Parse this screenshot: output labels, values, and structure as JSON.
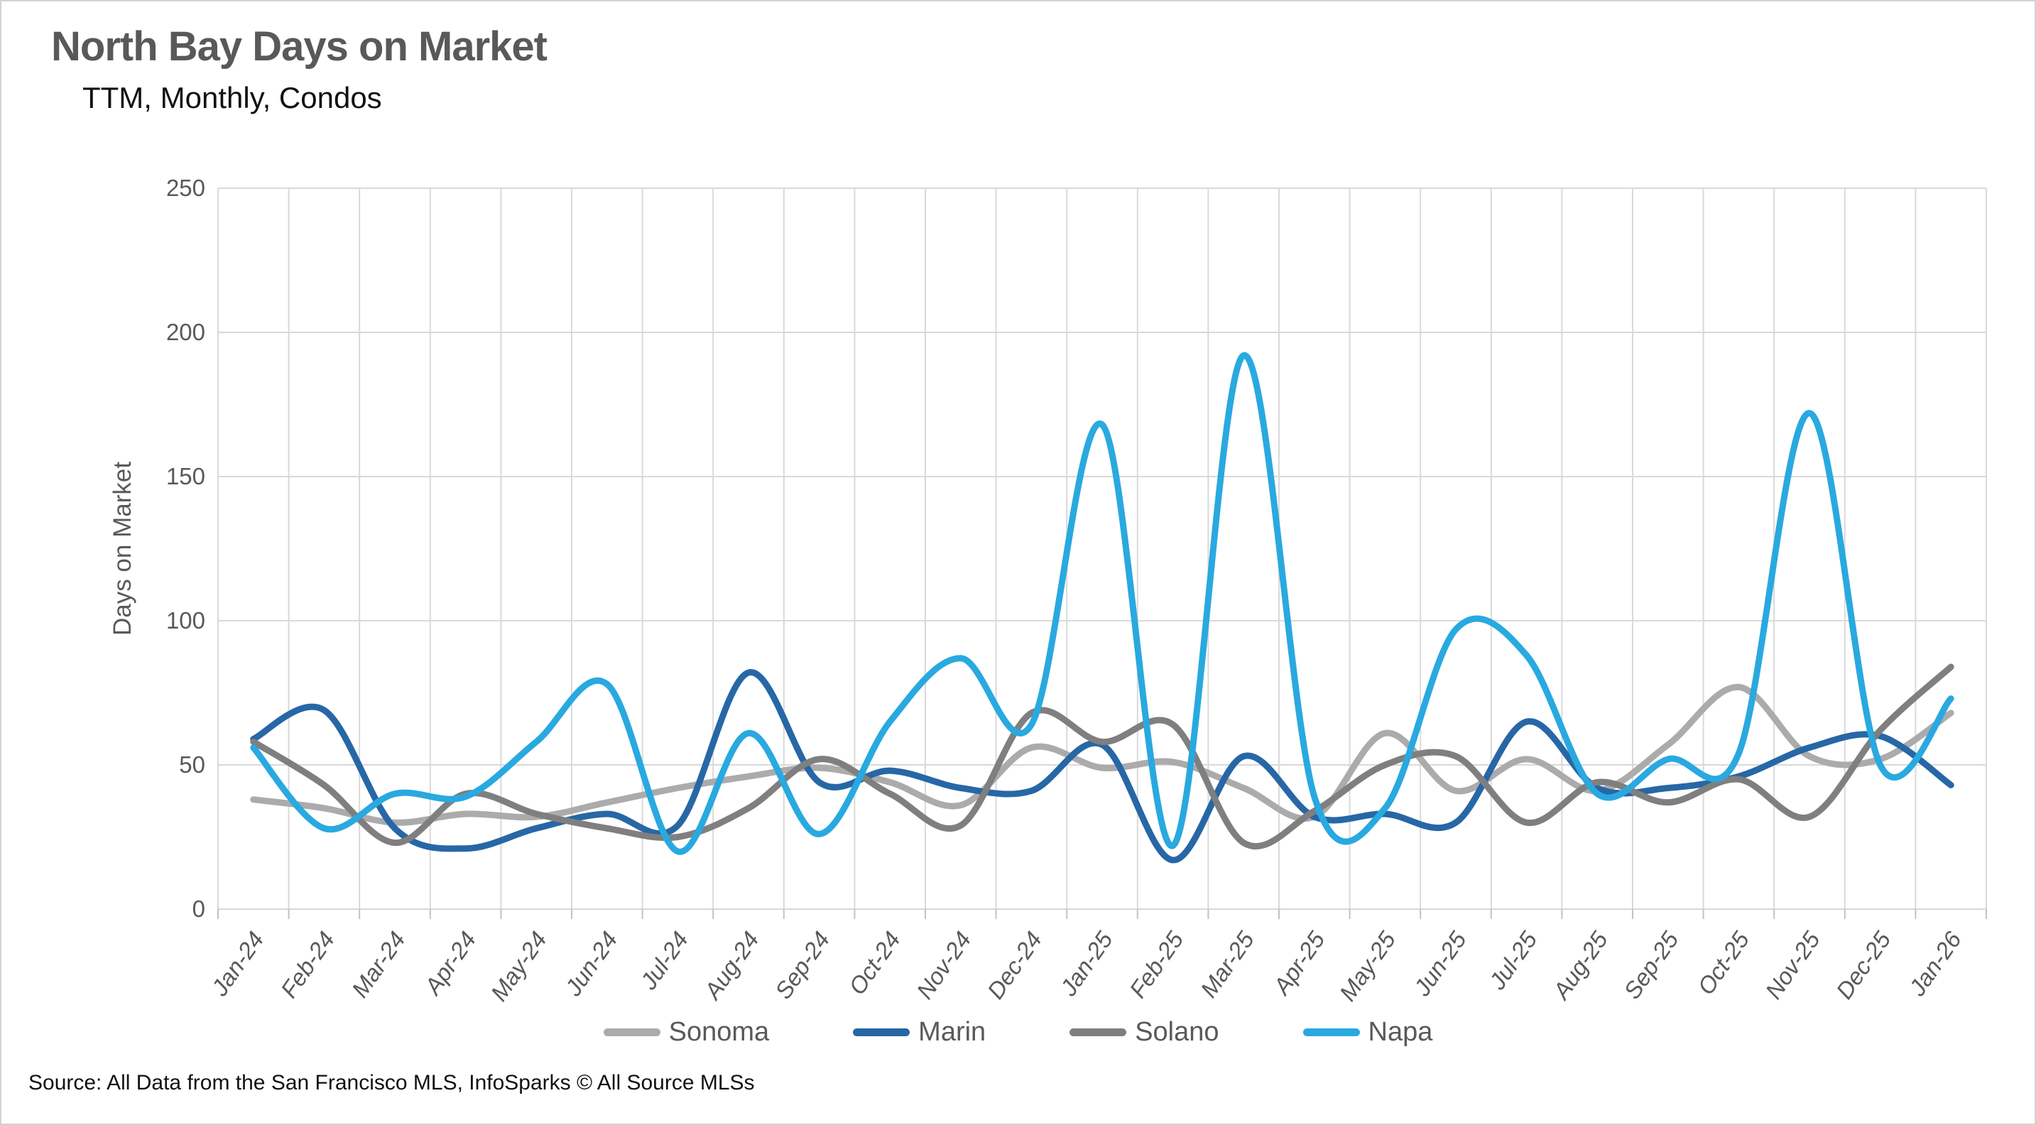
{
  "header": {
    "title": "North Bay Days on Market",
    "subtitle": "TTM, Monthly, Condos"
  },
  "footer": {
    "source": "Source: All Data from the San Francisco MLS, InfoSparks © All Source MLSs"
  },
  "chart_data": {
    "type": "line",
    "title": "North Bay Days on Market",
    "subtitle": "TTM, Monthly, Condos",
    "xlabel": "",
    "ylabel": "Days on Market",
    "ylim": [
      0,
      250
    ],
    "yticks": [
      0,
      50,
      100,
      150,
      200,
      250
    ],
    "grid": true,
    "smooth": true,
    "legend_position": "bottom",
    "axis_text_color": "#595959",
    "gridline_color": "#d9d9d9",
    "categories": [
      "Jan-24",
      "Feb-24",
      "Mar-24",
      "Apr-24",
      "May-24",
      "Jun-24",
      "Jul-24",
      "Aug-24",
      "Sep-24",
      "Oct-24",
      "Nov-24",
      "Dec-24",
      "Jan-25",
      "Feb-25",
      "Mar-25",
      "Apr-25",
      "May-25",
      "Jun-25",
      "Jul-25",
      "Aug-25",
      "Sep-25",
      "Oct-25",
      "Nov-25",
      "Dec-25",
      "Jan-26"
    ],
    "series": [
      {
        "name": "Sonoma",
        "color": "#ababab",
        "values": [
          38,
          35,
          30,
          33,
          32,
          37,
          42,
          46,
          49,
          44,
          36,
          56,
          49,
          51,
          42,
          32,
          61,
          41,
          52,
          41,
          57,
          77,
          53,
          52,
          68
        ]
      },
      {
        "name": "Marin",
        "color": "#2767a6",
        "values": [
          59,
          69,
          28,
          21,
          28,
          33,
          29,
          82,
          44,
          48,
          42,
          41,
          57,
          17,
          53,
          32,
          33,
          30,
          65,
          42,
          42,
          46,
          56,
          60,
          43
        ]
      },
      {
        "name": "Solano",
        "color": "#7f7f7f",
        "values": [
          58,
          43,
          23,
          40,
          33,
          28,
          25,
          35,
          52,
          40,
          29,
          68,
          58,
          64,
          23,
          34,
          50,
          53,
          30,
          44,
          37,
          45,
          32,
          62,
          84
        ]
      },
      {
        "name": "Napa",
        "color": "#29a9e0",
        "values": [
          56,
          28,
          40,
          39,
          58,
          78,
          20,
          61,
          26,
          65,
          87,
          64,
          168,
          22,
          192,
          39,
          35,
          97,
          88,
          40,
          52,
          54,
          172,
          50,
          73
        ]
      }
    ]
  }
}
